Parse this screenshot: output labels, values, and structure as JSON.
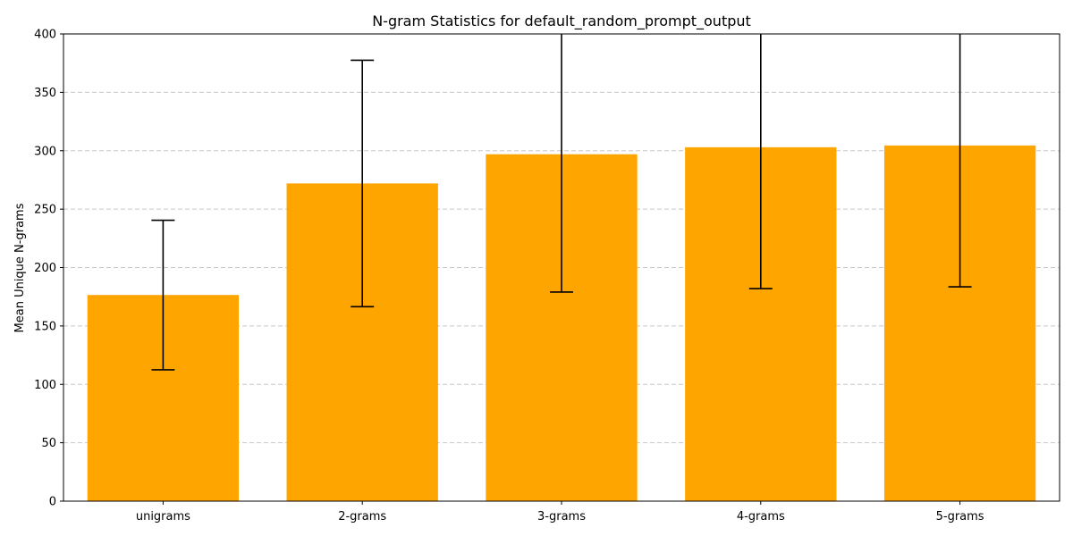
{
  "chart_data": {
    "type": "bar",
    "title": "N-gram Statistics for default_random_prompt_output",
    "xlabel": "",
    "ylabel": "Mean Unique N-grams",
    "categories": [
      "unigrams",
      "2-grams",
      "3-grams",
      "4-grams",
      "5-grams"
    ],
    "values": [
      176.5,
      272,
      297,
      303,
      304.5
    ],
    "errors": [
      64,
      105.5,
      118,
      121,
      121
    ],
    "ylim": [
      0,
      400
    ],
    "yticks": [
      0,
      50,
      100,
      150,
      200,
      250,
      300,
      350,
      400
    ],
    "grid": true,
    "bar_color": "#ffa500"
  }
}
